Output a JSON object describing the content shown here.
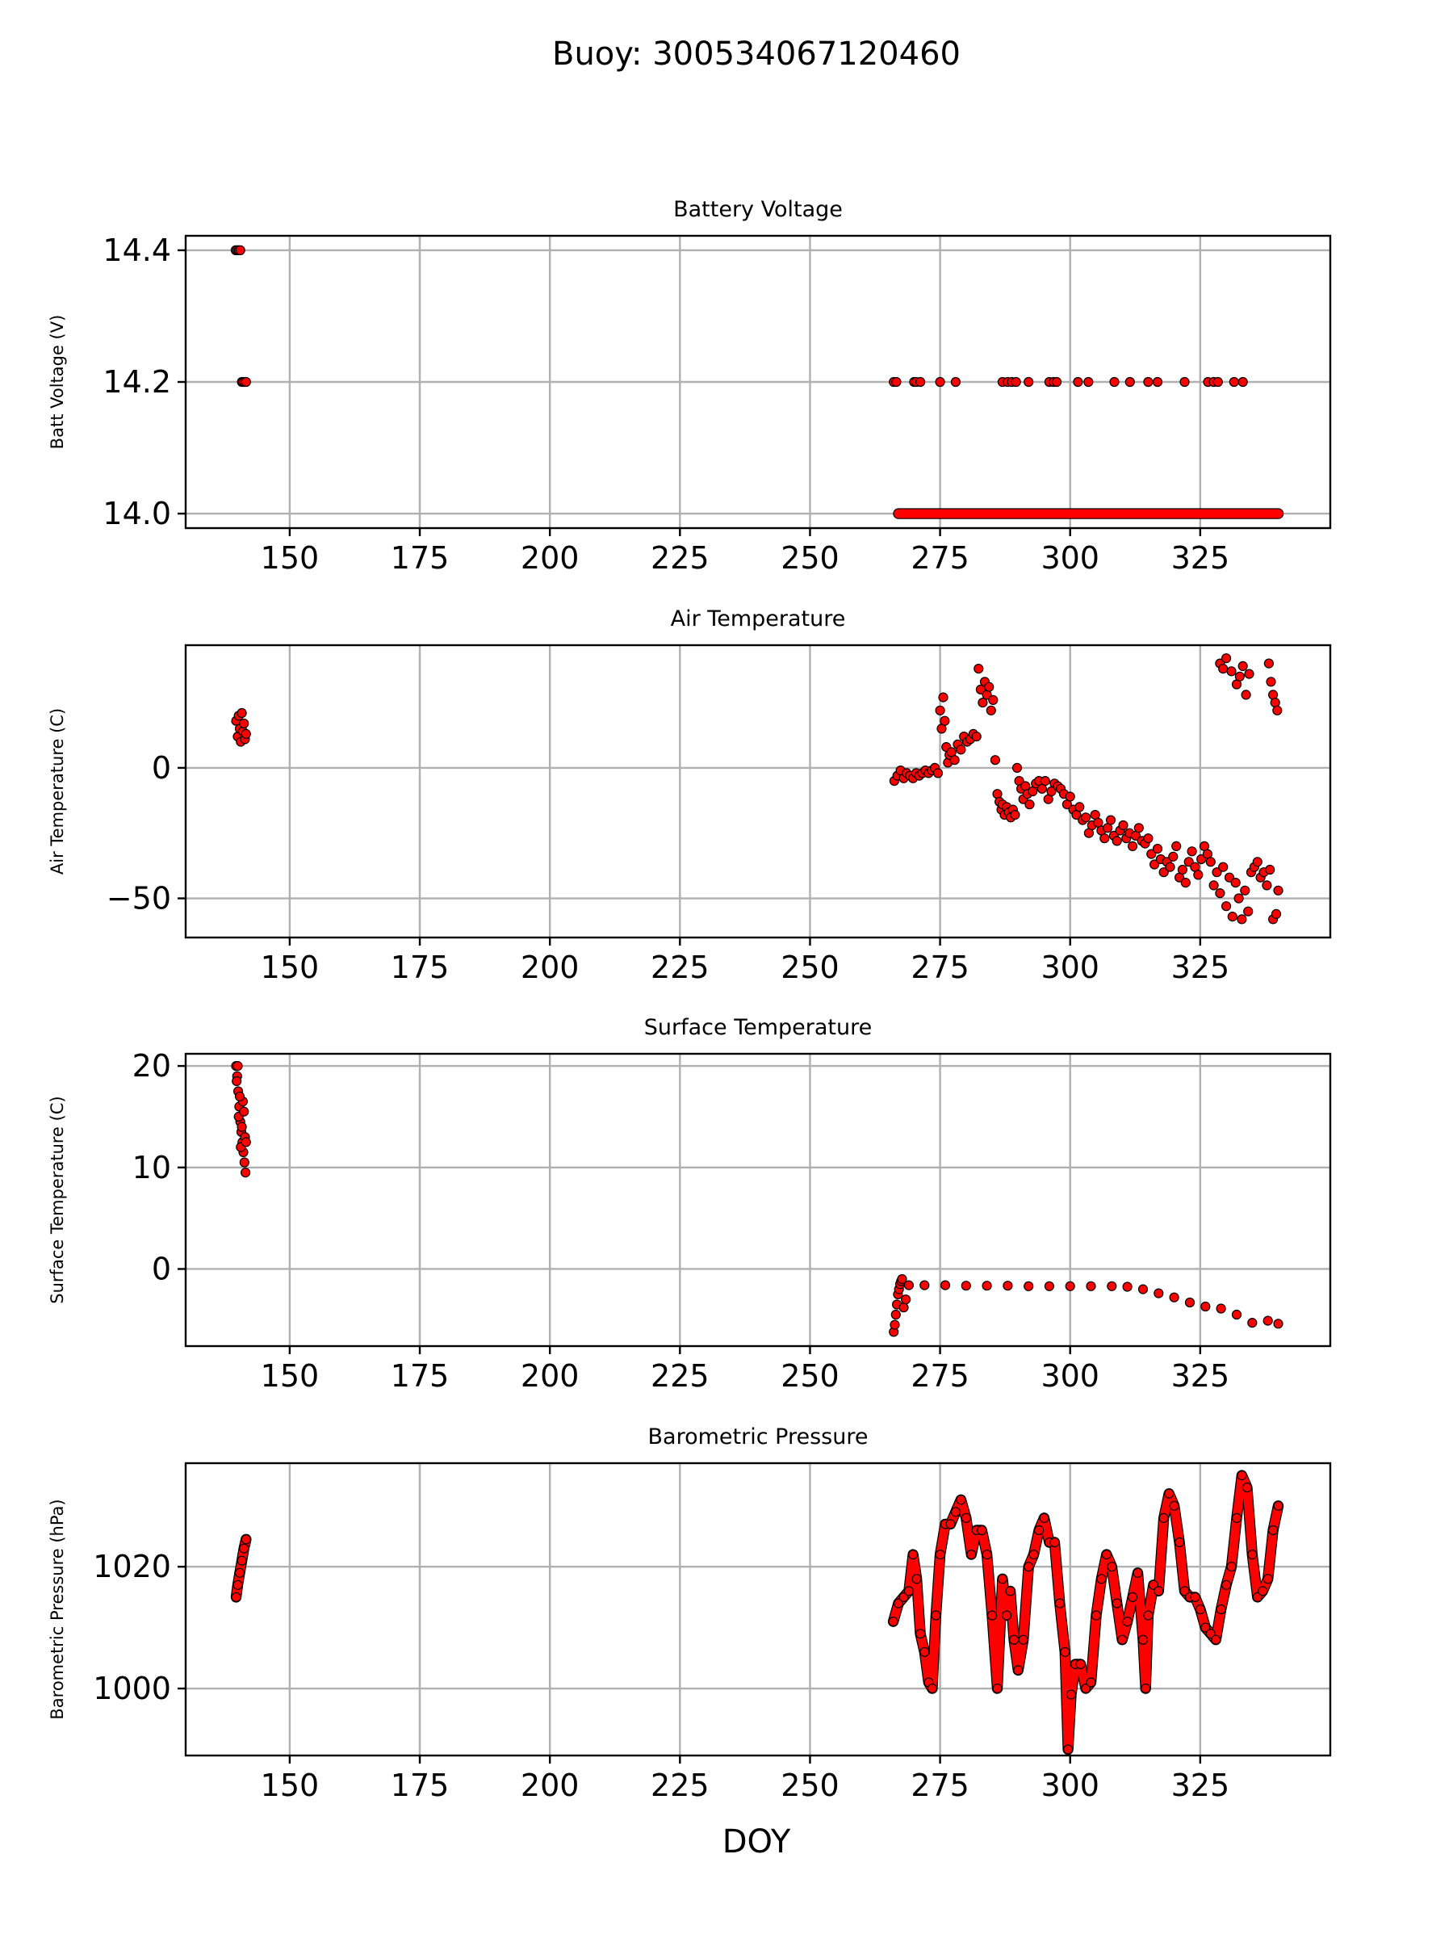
{
  "figure": {
    "suptitle": "Buoy: 300534067120460",
    "xlabel": "DOY"
  },
  "colors": {
    "marker_fill": "#ff0000",
    "marker_edge": "#000000",
    "grid": "#b0b0b0"
  },
  "chart_data": [
    {
      "type": "scatter",
      "title": "Battery Voltage",
      "ylabel": "Batt Voltage (V)",
      "xlim": [
        130,
        350
      ],
      "ylim": [
        13.978,
        14.422
      ],
      "xticks": [
        150,
        175,
        200,
        225,
        250,
        275,
        300,
        325
      ],
      "yticks": [
        14.0,
        14.2,
        14.4
      ],
      "ytick_labels": [
        "14.0",
        "14.2",
        "14.4"
      ],
      "grid": true,
      "series": [
        {
          "x": [
            139.6,
            139.9,
            140.2,
            140.5,
            140.8,
            141.0,
            141.3,
            141.6,
            266.1,
            266.6,
            270.0,
            270.4,
            271.2,
            275.0,
            278.0,
            287.0,
            288.0,
            288.8,
            289.6,
            292.0,
            296.0,
            296.8,
            297.4,
            301.5,
            303.5,
            308.5,
            311.5,
            315.0,
            316.8,
            322.0,
            326.5,
            327.6,
            328.4,
            331.5,
            333.2
          ],
          "y": [
            14.4,
            14.4,
            14.4,
            14.4,
            14.2,
            14.2,
            14.2,
            14.2,
            14.2,
            14.2,
            14.2,
            14.2,
            14.2,
            14.2,
            14.2,
            14.2,
            14.2,
            14.2,
            14.2,
            14.2,
            14.2,
            14.2,
            14.2,
            14.2,
            14.2,
            14.2,
            14.2,
            14.2,
            14.2,
            14.2,
            14.2,
            14.2,
            14.2,
            14.2,
            14.2
          ]
        },
        {
          "x_range": [
            267.0,
            340.0
          ],
          "y_constant": 14.0
        }
      ]
    },
    {
      "type": "scatter",
      "title": "Air Temperature",
      "ylabel": "Air Temperature (C)",
      "xlim": [
        130,
        350
      ],
      "ylim": [
        -65,
        47
      ],
      "xticks": [
        150,
        175,
        200,
        225,
        250,
        275,
        300,
        325
      ],
      "yticks": [
        -50,
        0
      ],
      "ytick_labels": [
        "−50",
        "0"
      ],
      "grid": true,
      "series": [
        {
          "x": [
            139.7,
            140.0,
            140.2,
            140.4,
            140.6,
            140.8,
            141.0,
            141.2,
            141.4,
            141.6,
            266.2,
            266.8,
            267.4,
            268.0,
            268.6,
            269.2,
            269.8,
            270.4,
            271.0,
            271.6,
            272.2,
            272.8,
            273.4,
            274.0,
            274.6,
            275.0,
            275.3,
            275.6,
            275.9,
            276.2,
            276.5,
            276.8,
            277.2,
            277.8,
            278.4,
            279.0,
            279.6,
            280.2,
            280.8,
            281.4,
            282.0,
            282.4,
            282.8,
            283.2,
            283.6,
            284.0,
            284.4,
            284.8,
            285.2,
            285.6,
            286.0,
            286.4,
            286.8,
            287.0,
            287.4,
            287.8,
            288.2,
            288.6,
            289.0,
            289.4,
            289.8,
            290.2,
            290.6,
            291.0,
            291.4,
            291.8,
            292.2,
            292.8,
            293.4,
            294.0,
            294.6,
            295.2,
            295.8,
            296.4,
            297.0,
            297.6,
            298.2,
            298.8,
            299.4,
            300.0,
            300.6,
            301.2,
            301.8,
            302.4,
            303.0,
            303.6,
            304.2,
            304.8,
            305.4,
            306.0,
            306.6,
            307.2,
            307.8,
            308.4,
            309.0,
            309.6,
            310.2,
            310.8,
            311.4,
            312.0,
            312.6,
            313.2,
            313.8,
            314.4,
            315.0,
            315.6,
            316.2,
            316.8,
            317.4,
            318.0,
            318.6,
            319.2,
            319.8,
            320.4,
            321.0,
            321.6,
            322.2,
            322.8,
            323.4,
            324.0,
            324.6,
            325.2,
            325.8,
            326.4,
            327.0,
            327.6,
            328.2,
            328.8,
            329.4,
            330.0,
            330.6,
            331.2,
            331.8,
            332.4,
            333.0,
            333.6,
            334.2,
            334.8,
            335.4,
            336.0,
            336.6,
            337.2,
            337.8,
            338.4,
            339.0,
            339.6,
            340.0,
            328.8,
            329.4,
            330.0,
            331.0,
            332.0,
            332.6,
            333.2,
            333.8,
            334.4,
            338.2,
            338.6,
            339.0,
            339.4,
            339.8
          ],
          "y": [
            18,
            12,
            20,
            15,
            10,
            21,
            14,
            17,
            11,
            13,
            -5,
            -3,
            -1,
            -4,
            -2,
            -3,
            -4,
            -2,
            -3,
            -2,
            -1,
            -2,
            -1,
            0,
            -2,
            22,
            15,
            27,
            18,
            8,
            2,
            5,
            6,
            3,
            9,
            7,
            12,
            10,
            11,
            13,
            12,
            38,
            30,
            25,
            33,
            28,
            31,
            22,
            26,
            3,
            -10,
            -13,
            -16,
            -14,
            -18,
            -15,
            -17,
            -19,
            -16,
            -18,
            0,
            -5,
            -8,
            -12,
            -7,
            -10,
            -14,
            -9,
            -6,
            -5,
            -8,
            -5,
            -12,
            -9,
            -6,
            -7,
            -8,
            -10,
            -14,
            -11,
            -16,
            -18,
            -15,
            -20,
            -19,
            -25,
            -22,
            -18,
            -21,
            -24,
            -27,
            -23,
            -20,
            -26,
            -28,
            -24,
            -22,
            -27,
            -25,
            -30,
            -26,
            -23,
            -28,
            -29,
            -27,
            -33,
            -37,
            -31,
            -35,
            -40,
            -36,
            -38,
            -34,
            -30,
            -42,
            -39,
            -44,
            -36,
            -32,
            -38,
            -41,
            -35,
            -30,
            -33,
            -36,
            -45,
            -40,
            -48,
            -38,
            -53,
            -42,
            -57,
            -44,
            -50,
            -58,
            -47,
            -55,
            -40,
            -38,
            -36,
            -42,
            -40,
            -45,
            -39,
            -58,
            -56,
            -47,
            40,
            38,
            42,
            37,
            32,
            35,
            39,
            28,
            36,
            40,
            33,
            28,
            25,
            22
          ]
        }
      ]
    },
    {
      "type": "scatter",
      "title": "Surface Temperature",
      "ylabel": "Surface Temperature (C)",
      "xlim": [
        130,
        350
      ],
      "ylim": [
        -7.6,
        21.2
      ],
      "xticks": [
        150,
        175,
        200,
        225,
        250,
        275,
        300,
        325
      ],
      "yticks": [
        0,
        10,
        20
      ],
      "ytick_labels": [
        "0",
        "10",
        "20"
      ],
      "grid": true,
      "series": [
        {
          "x": [
            139.7,
            139.9,
            140.1,
            140.3,
            140.5,
            140.7,
            140.9,
            141.1,
            141.3,
            141.5,
            139.8,
            140.2,
            140.6,
            141.0,
            141.4,
            140.0,
            140.4,
            140.8,
            141.2,
            141.6,
            266.1,
            266.3,
            266.5,
            266.7,
            266.9,
            267.1,
            267.3,
            267.5,
            267.7,
            268.0,
            268.4,
            269,
            272,
            276,
            280,
            284,
            288,
            292,
            296,
            300,
            304,
            308,
            311,
            314,
            317,
            320,
            323,
            326,
            329,
            332,
            335,
            338,
            340
          ],
          "y": [
            20,
            19,
            17.5,
            16,
            14.5,
            13.5,
            12.5,
            11.5,
            10.5,
            9.5,
            18.5,
            15,
            12,
            16.5,
            13,
            20,
            17,
            14,
            15.5,
            12.5,
            -6.2,
            -5.5,
            -4.5,
            -3.5,
            -2.5,
            -2.0,
            -1.5,
            -1.2,
            -1.0,
            -3.8,
            -3.0,
            -1.6,
            -1.6,
            -1.6,
            -1.65,
            -1.65,
            -1.65,
            -1.7,
            -1.7,
            -1.7,
            -1.7,
            -1.7,
            -1.75,
            -2.0,
            -2.4,
            -2.8,
            -3.3,
            -3.7,
            -3.9,
            -4.5,
            -5.3,
            -5.1,
            -5.4
          ]
        }
      ]
    },
    {
      "type": "line",
      "title": "Barometric Pressure",
      "ylabel": "Barometric Pressure (hPa)",
      "xlim": [
        130,
        350
      ],
      "ylim": [
        989,
        1037
      ],
      "xticks": [
        150,
        175,
        200,
        225,
        250,
        275,
        300,
        325
      ],
      "yticks": [
        1000,
        1020
      ],
      "ytick_labels": [
        "1000",
        "1020"
      ],
      "grid": true,
      "series": [
        {
          "x": [
            139.7,
            140.0,
            140.4,
            140.8,
            141.2,
            141.6
          ],
          "y": [
            1015,
            1017,
            1019,
            1021,
            1023,
            1024.5
          ]
        },
        {
          "x": [
            266,
            267,
            268,
            269,
            269.8,
            270.5,
            271.2,
            272,
            272.8,
            273.5,
            274.2,
            275,
            276,
            277,
            278,
            279,
            280,
            281,
            282,
            283,
            284,
            285,
            286,
            287,
            287.8,
            288.5,
            289.2,
            290,
            291,
            292,
            293,
            294,
            295,
            296,
            297,
            298,
            299,
            299.6,
            300.2,
            301,
            302,
            303,
            304,
            305,
            306,
            307,
            308,
            309,
            310,
            311,
            312,
            313,
            314,
            314.5,
            315,
            316,
            317,
            318,
            319,
            320,
            321,
            322,
            323,
            324,
            325,
            326,
            327,
            328,
            329,
            330,
            331,
            332,
            333,
            334,
            335,
            336,
            337,
            338,
            339,
            340
          ],
          "y": [
            1011,
            1014,
            1015,
            1016,
            1022,
            1018,
            1009,
            1006,
            1001,
            1000,
            1012,
            1022,
            1027,
            1027,
            1029,
            1031,
            1028,
            1022,
            1026,
            1026,
            1022,
            1012,
            1000,
            1018,
            1012,
            1016,
            1008,
            1003,
            1008,
            1020,
            1022,
            1026,
            1028,
            1024,
            1024,
            1014,
            1006,
            990,
            999,
            1004,
            1004,
            1000,
            1001,
            1012,
            1018,
            1022,
            1020,
            1014,
            1008,
            1011,
            1015,
            1019,
            1008,
            1000,
            1012,
            1017,
            1016,
            1028,
            1032,
            1030,
            1024,
            1016,
            1015,
            1015,
            1013,
            1010,
            1009,
            1008,
            1013,
            1017,
            1020,
            1028,
            1035,
            1033,
            1022,
            1015,
            1016,
            1018,
            1026,
            1030
          ]
        }
      ]
    }
  ]
}
